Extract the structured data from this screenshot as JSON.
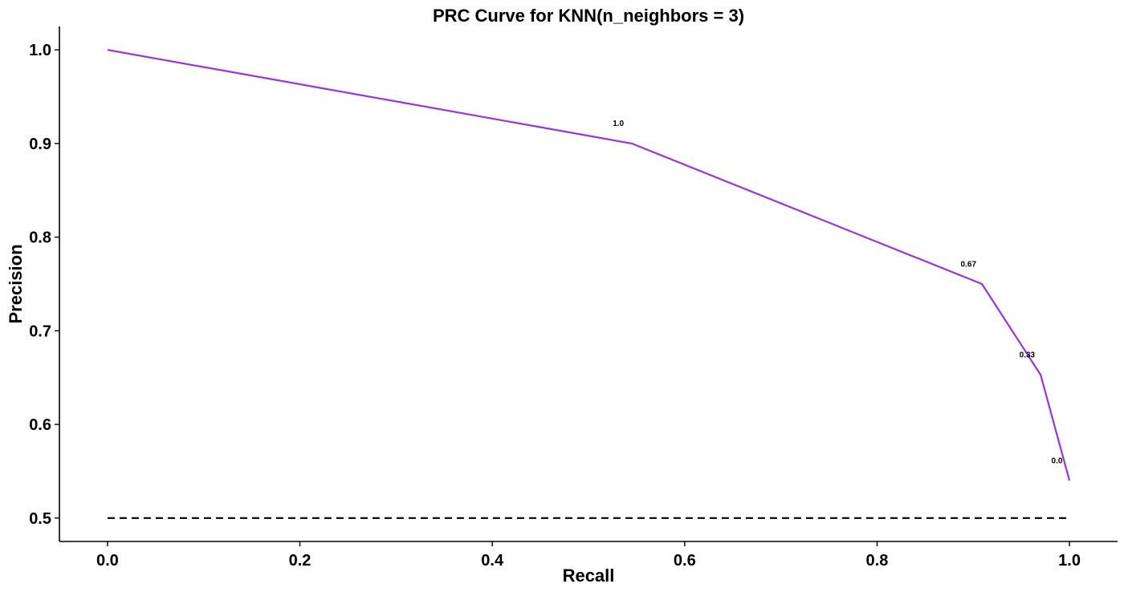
{
  "chart_data": {
    "type": "line",
    "title": "PRC Curve for KNN(n_neighbors = 3)",
    "xlabel": "Recall",
    "ylabel": "Precision",
    "xlim": [
      -0.05,
      1.05
    ],
    "ylim": [
      0.475,
      1.025
    ],
    "xticks": [
      "0.0",
      "0.2",
      "0.4",
      "0.6",
      "0.8",
      "1.0"
    ],
    "yticks": [
      "0.5",
      "0.6",
      "0.7",
      "0.8",
      "0.9",
      "1.0"
    ],
    "grid": false,
    "legend": "none",
    "series": [
      {
        "color": "#9b30e8",
        "style": "solid",
        "x": [
          0.0,
          0.545,
          0.909,
          0.97,
          1.0
        ],
        "y": [
          1.0,
          0.9,
          0.75,
          0.653,
          0.54
        ]
      },
      {
        "color": "#000000",
        "style": "dashed",
        "x": [
          0.0,
          1.0
        ],
        "y": [
          0.5,
          0.5
        ]
      }
    ],
    "annotations": [
      {
        "text": "1.0",
        "x": 0.531,
        "y": 0.922
      },
      {
        "text": "0.67",
        "x": 0.895,
        "y": 0.772
      },
      {
        "text": "0.33",
        "x": 0.956,
        "y": 0.675
      },
      {
        "text": "0.0",
        "x": 0.987,
        "y": 0.562
      }
    ]
  }
}
